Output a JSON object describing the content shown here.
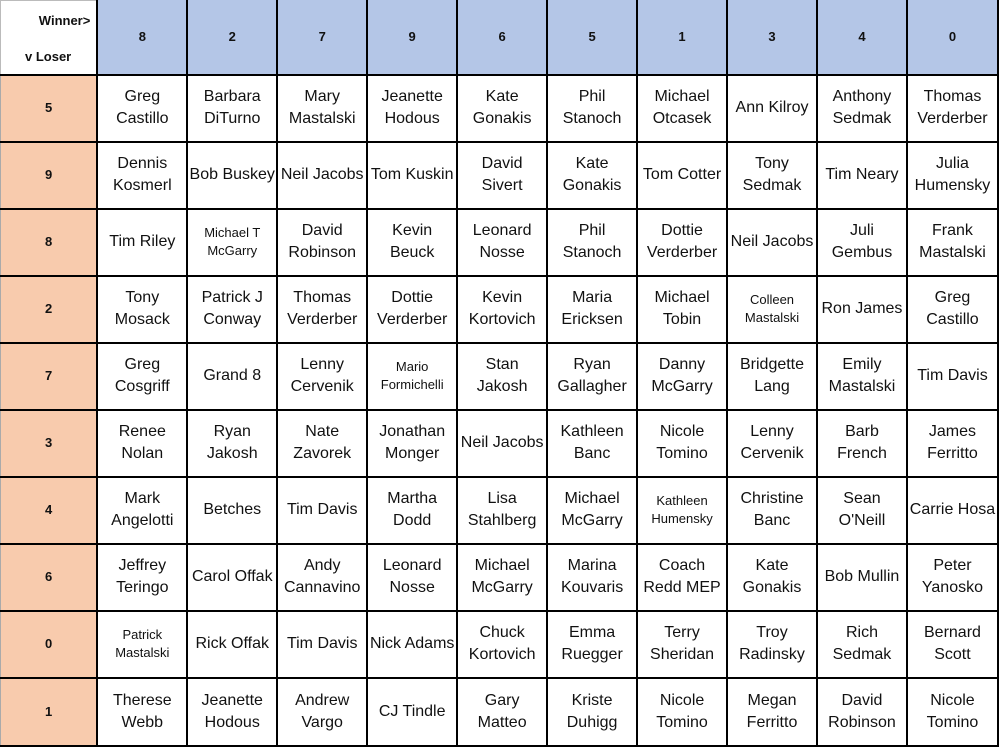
{
  "corner": {
    "winner_label": "Winner>",
    "loser_label": "v Loser"
  },
  "colors": {
    "header_bg": "#b4c6e7",
    "row_header_bg": "#f8cbad"
  },
  "winner_digits": [
    "8",
    "2",
    "7",
    "9",
    "6",
    "5",
    "1",
    "3",
    "4",
    "0"
  ],
  "rows": [
    {
      "loser_digit": "5",
      "cells": [
        "Greg Castillo",
        "Barbara DiTurno",
        "Mary Mastalski",
        "Jeanette Hodous",
        "Kate Gonakis",
        "Phil Stanoch",
        "Michael Otcasek",
        "Ann Kilroy",
        "Anthony Sedmak",
        "Thomas Verderber"
      ]
    },
    {
      "loser_digit": "9",
      "cells": [
        "Dennis Kosmerl",
        "Bob Buskey",
        "Neil Jacobs",
        "Tom Kuskin",
        "David Sivert",
        "Kate Gonakis",
        "Tom Cotter",
        "Tony Sedmak",
        "Tim Neary",
        "Julia Humensky"
      ]
    },
    {
      "loser_digit": "8",
      "cells": [
        "Tim Riley",
        "Michael T McGarry",
        "David Robinson",
        "Kevin Beuck",
        "Leonard Nosse",
        "Phil Stanoch",
        "Dottie Verderber",
        "Neil Jacobs",
        "Juli Gembus",
        "Frank Mastalski"
      ]
    },
    {
      "loser_digit": "2",
      "cells": [
        "Tony Mosack",
        "Patrick J Conway",
        "Thomas Verderber",
        "Dottie Verderber",
        "Kevin Kortovich",
        "Maria Ericksen",
        "Michael Tobin",
        "Colleen Mastalski",
        "Ron James",
        "Greg Castillo"
      ]
    },
    {
      "loser_digit": "7",
      "cells": [
        "Greg Cosgriff",
        "Grand 8",
        "Lenny Cervenik",
        "Mario Formichelli",
        "Stan Jakosh",
        "Ryan Gallagher",
        "Danny McGarry",
        "Bridgette Lang",
        "Emily Mastalski",
        "Tim Davis"
      ]
    },
    {
      "loser_digit": "3",
      "cells": [
        "Renee Nolan",
        "Ryan Jakosh",
        "Nate Zavorek",
        "Jonathan Monger",
        "Neil Jacobs",
        "Kathleen Banc",
        "Nicole Tomino",
        "Lenny Cervenik",
        "Barb French",
        "James Ferritto"
      ]
    },
    {
      "loser_digit": "4",
      "cells": [
        "Mark Angelotti",
        "Betches",
        "Tim Davis",
        "Martha Dodd",
        "Lisa Stahlberg",
        "Michael McGarry",
        "Kathleen Humensky",
        "Christine Banc",
        "Sean O'Neill",
        "Carrie Hosa"
      ]
    },
    {
      "loser_digit": "6",
      "cells": [
        "Jeffrey Teringo",
        "Carol Offak",
        "Andy Cannavino",
        "Leonard Nosse",
        "Michael McGarry",
        "Marina Kouvaris",
        "Coach Redd MEP",
        "Kate Gonakis",
        "Bob Mullin",
        "Peter Yanosko"
      ]
    },
    {
      "loser_digit": "0",
      "cells": [
        "Patrick Mastalski",
        "Rick Offak",
        "Tim Davis",
        "Nick Adams",
        "Chuck Kortovich",
        "Emma Ruegger",
        "Terry Sheridan",
        "Troy Radinsky",
        "Rich Sedmak",
        "Bernard Scott"
      ]
    },
    {
      "loser_digit": "1",
      "cells": [
        "Therese Webb",
        "Jeanette Hodous",
        "Andrew Vargo",
        "CJ Tindle",
        "Gary Matteo",
        "Kriste Duhigg",
        "Nicole Tomino",
        "Megan Ferritto",
        "David Robinson",
        "Nicole Tomino"
      ]
    }
  ]
}
